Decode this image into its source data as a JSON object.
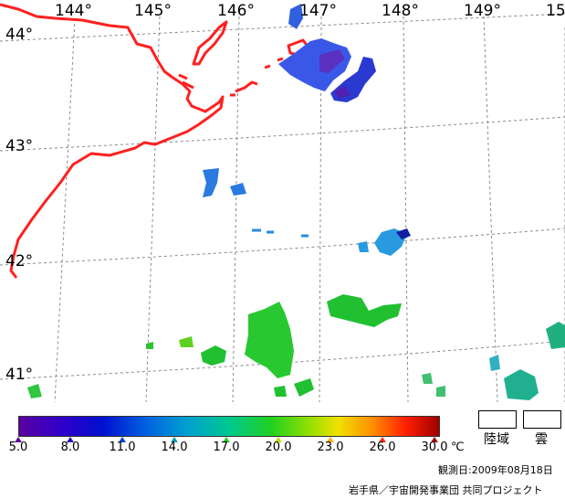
{
  "map": {
    "lon_labels": [
      "144°",
      "145°",
      "146°",
      "147°",
      "148°",
      "149°",
      "15"
    ],
    "lat_labels": [
      "44°",
      "43°",
      "42°",
      "41°"
    ],
    "coast_color": "#ff2020",
    "grid_color": "#888888"
  },
  "colorbar": {
    "ticks": [
      "5.0",
      "8.0",
      "11.0",
      "14.0",
      "17.0",
      "20.0",
      "23.0",
      "26.0",
      "30.0"
    ],
    "unit": "℃",
    "tick_colors": [
      "#5a00a0",
      "#2010c0",
      "#0040d8",
      "#00a0b0",
      "#20d020",
      "#c0e000",
      "#ffb000",
      "#ff3000",
      "#a00000"
    ]
  },
  "legend": {
    "land_label": "陸域",
    "cloud_label": "雲"
  },
  "observation_date": "観測日:2009年08月18日",
  "credit": "岩手県／宇宙開発事業団 共同プロジェクト"
}
